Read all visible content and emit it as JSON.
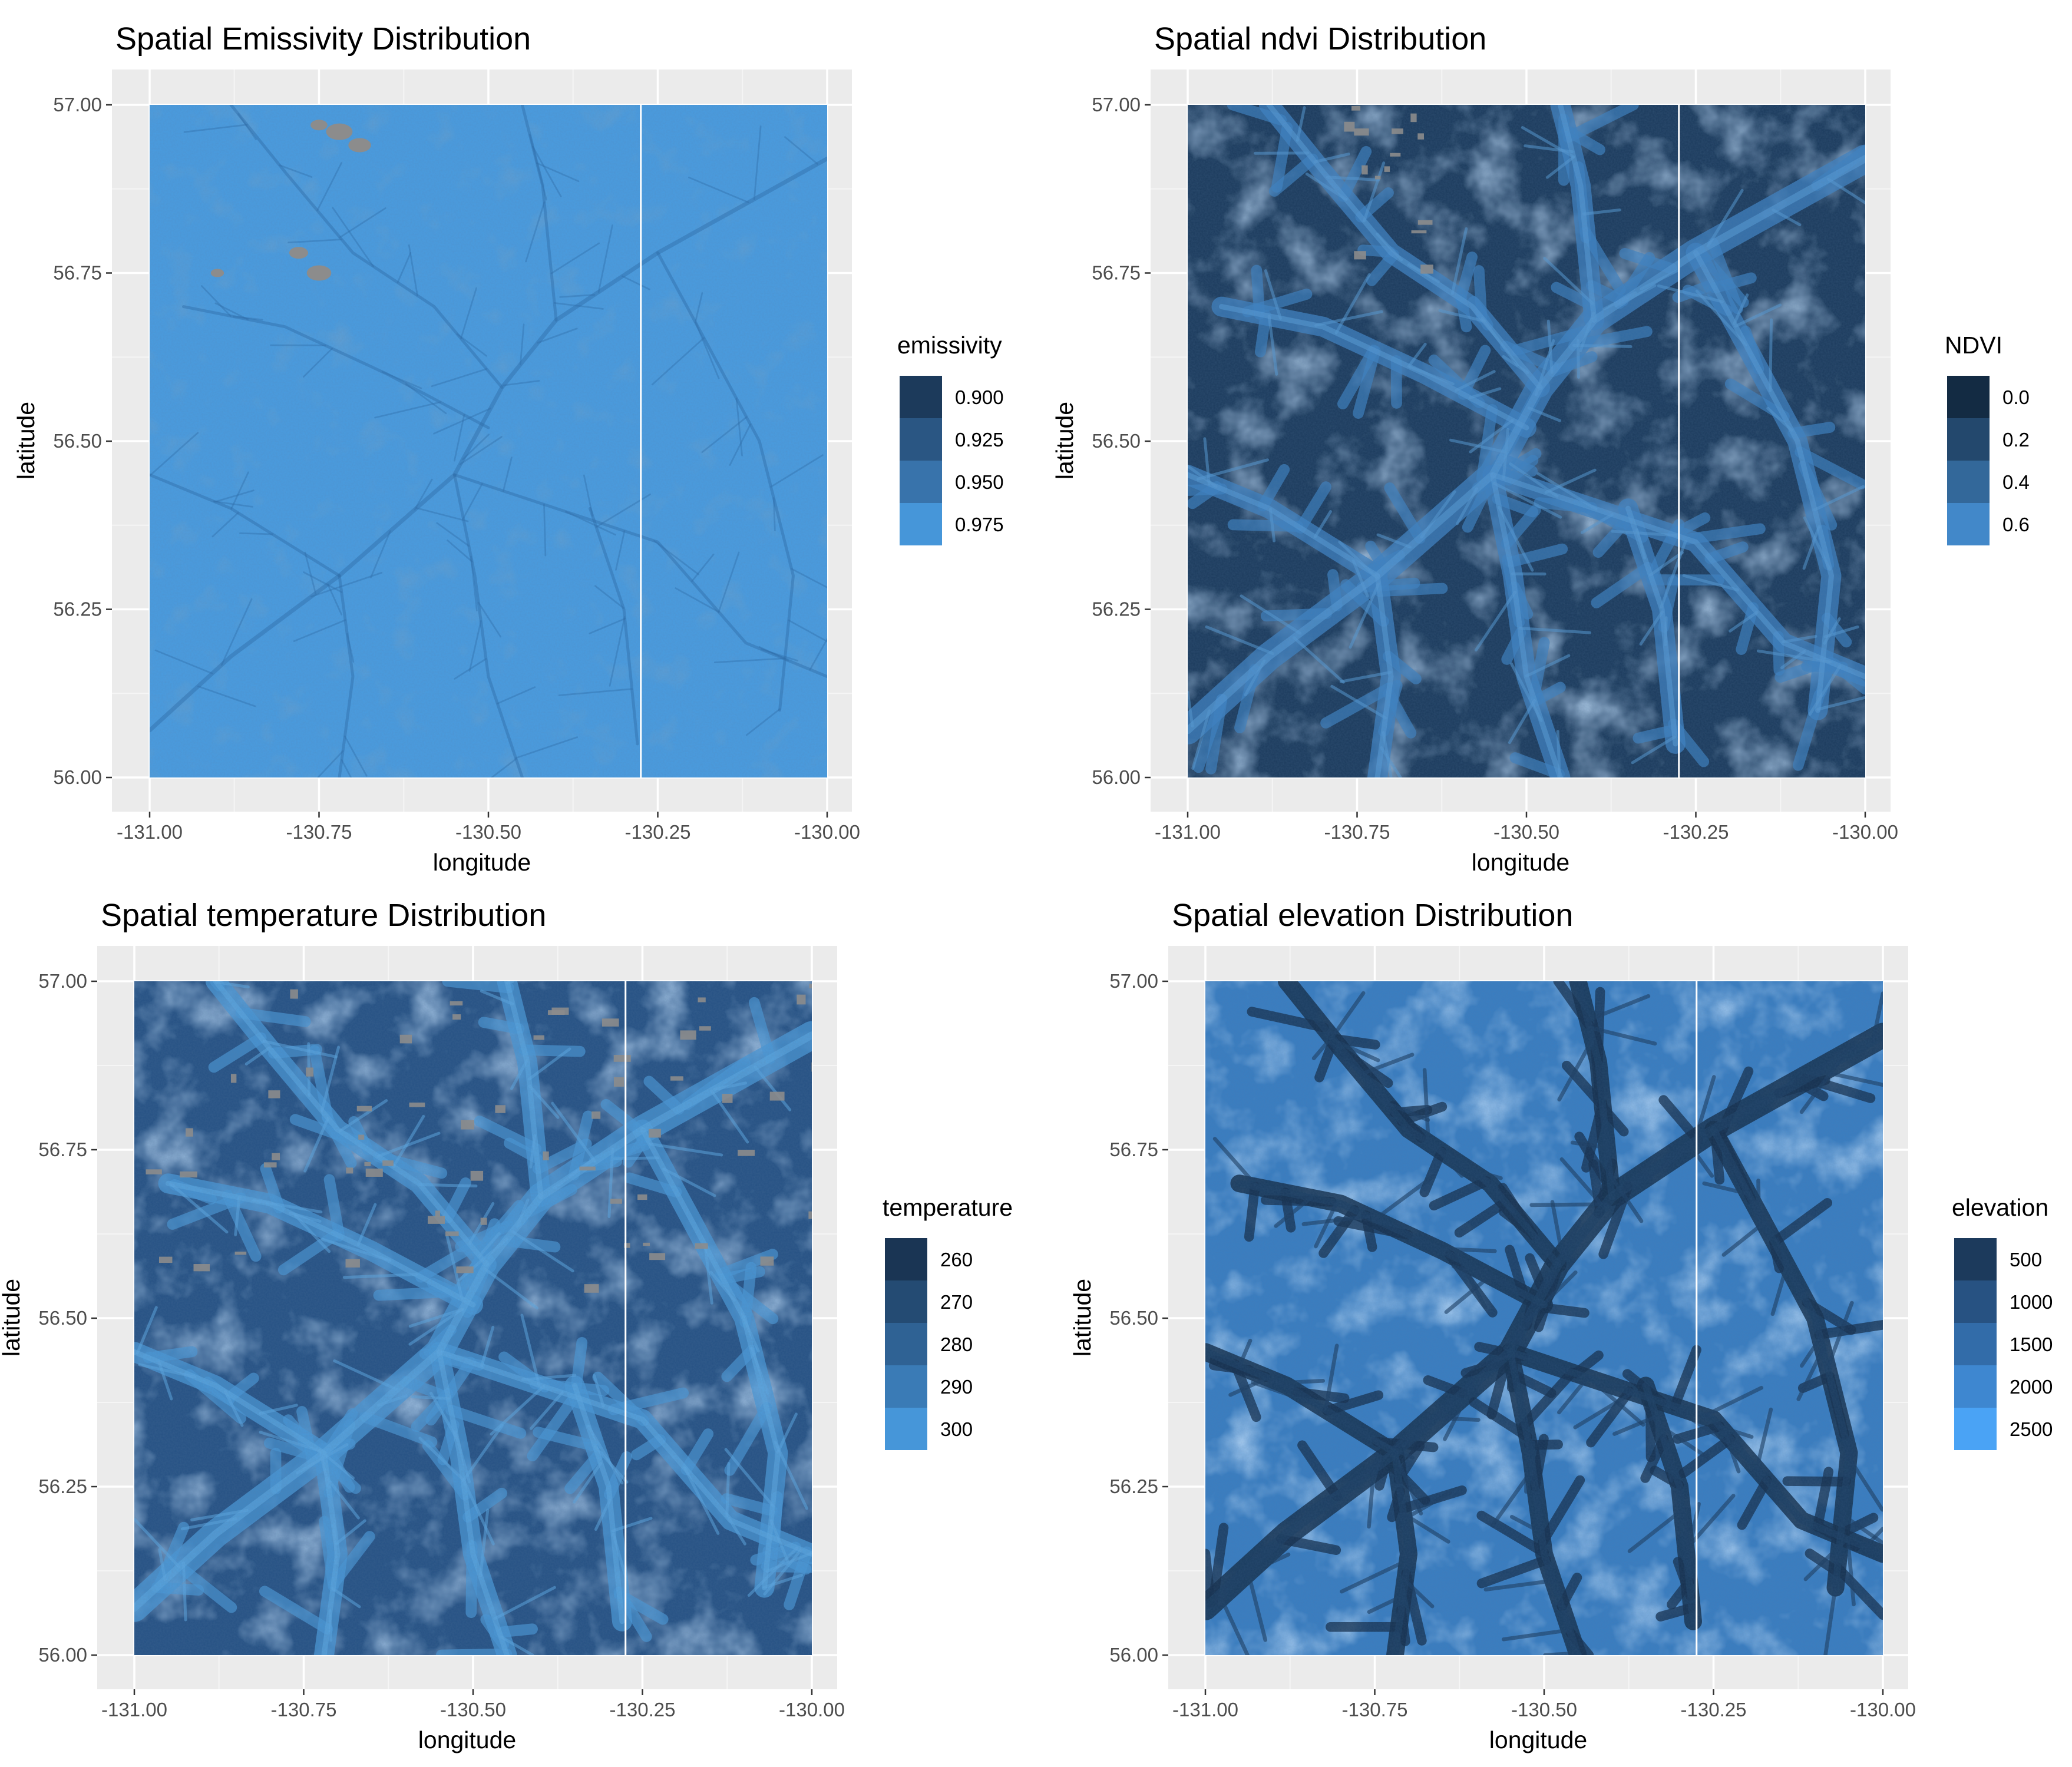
{
  "colors": {
    "panel_bg": "#EBEBEB",
    "grid_major": "#FFFFFF",
    "grid_minor": "#F5F5F5",
    "na_gray": "#8C8C8C"
  },
  "chart_data": [
    {
      "type": "heatmap",
      "title": "Spatial Emissivity Distribution",
      "xlabel": "longitude",
      "ylabel": "latitude",
      "xlim": [
        -131.0,
        -130.0
      ],
      "ylim": [
        56.0,
        57.0
      ],
      "x_ticks": [
        "-131.00",
        "-130.75",
        "-130.50",
        "-130.25",
        "-130.00"
      ],
      "y_ticks": [
        "56.00",
        "56.25",
        "56.50",
        "56.75",
        "57.00"
      ],
      "legend_title": "emissivity",
      "legend_position": "right",
      "legend": [
        {
          "label": "0.900",
          "color": "#1C3A5B"
        },
        {
          "label": "0.925",
          "color": "#2A5683"
        },
        {
          "label": "0.950",
          "color": "#3873AB"
        },
        {
          "label": "0.975",
          "color": "#4696D9"
        }
      ],
      "base_color": "#4A9BDE",
      "pattern": "uniform",
      "seam_longitude": -130.275
    },
    {
      "type": "heatmap",
      "title": "Spatial ndvi Distribution",
      "xlabel": "longitude",
      "ylabel": "latitude",
      "xlim": [
        -131.0,
        -130.0
      ],
      "ylim": [
        56.0,
        57.0
      ],
      "x_ticks": [
        "-131.00",
        "-130.75",
        "-130.50",
        "-130.25",
        "-130.00"
      ],
      "y_ticks": [
        "56.00",
        "56.25",
        "56.50",
        "56.75",
        "57.00"
      ],
      "legend_title": "NDVI",
      "legend_position": "right",
      "legend": [
        {
          "label": "0.0",
          "color": "#132B43"
        },
        {
          "label": "0.2",
          "color": "#23486D"
        },
        {
          "label": "0.4",
          "color": "#33689A"
        },
        {
          "label": "0.6",
          "color": "#4288C9"
        }
      ],
      "base_color": "#1E3D5F",
      "pattern": "valleys_light",
      "seam_longitude": -130.275
    },
    {
      "type": "heatmap",
      "title": "Spatial temperature Distribution",
      "xlabel": "longitude",
      "ylabel": "latitude",
      "xlim": [
        -131.0,
        -130.0
      ],
      "ylim": [
        56.0,
        57.0
      ],
      "x_ticks": [
        "-131.00",
        "-130.75",
        "-130.50",
        "-130.25",
        "-130.00"
      ],
      "y_ticks": [
        "56.00",
        "56.25",
        "56.50",
        "56.75",
        "57.00"
      ],
      "legend_title": "temperature",
      "legend_position": "right",
      "legend": [
        {
          "label": "260",
          "color": "#1A3554"
        },
        {
          "label": "270",
          "color": "#244B73"
        },
        {
          "label": "280",
          "color": "#2F6294"
        },
        {
          "label": "290",
          "color": "#3A7BB6"
        },
        {
          "label": "300",
          "color": "#4696D9"
        }
      ],
      "base_color": "#285385",
      "pattern": "valleys_light",
      "seam_longitude": -130.275
    },
    {
      "type": "heatmap",
      "title": "Spatial elevation Distribution",
      "xlabel": "longitude",
      "ylabel": "latitude",
      "xlim": [
        -131.0,
        -130.0
      ],
      "ylim": [
        56.0,
        57.0
      ],
      "x_ticks": [
        "-131.00",
        "-130.75",
        "-130.50",
        "-130.25",
        "-130.00"
      ],
      "y_ticks": [
        "56.00",
        "56.25",
        "56.50",
        "56.75",
        "57.00"
      ],
      "legend_title": "elevation",
      "legend_position": "right",
      "legend": [
        {
          "label": "500",
          "color": "#1C3A5C"
        },
        {
          "label": "1000",
          "color": "#275282"
        },
        {
          "label": "1500",
          "color": "#326CA9"
        },
        {
          "label": "2000",
          "color": "#3E87D0"
        },
        {
          "label": "2500",
          "color": "#4AA3F5"
        }
      ],
      "base_color": "#3A7DC0",
      "pattern": "valleys_dark",
      "seam_longitude": -130.275
    }
  ]
}
